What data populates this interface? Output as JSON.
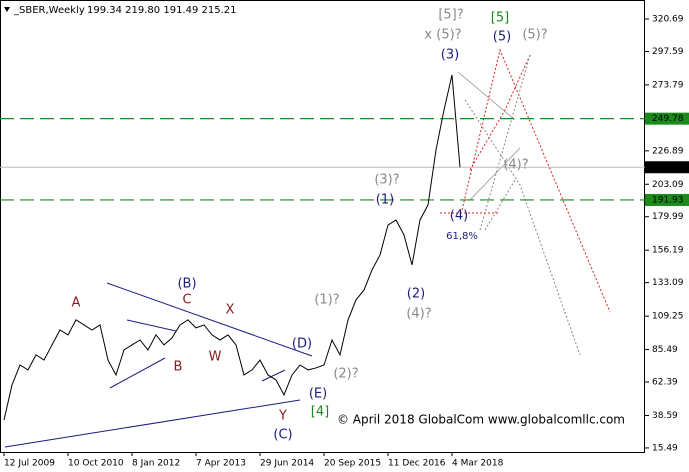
{
  "chart_data": {
    "type": "line",
    "title": "_SBER,Weekly",
    "ohlc": "199.34 219.80 191.49 215.21",
    "color": "#000000",
    "categories": [
      "12 Jul 2009",
      null,
      null,
      null,
      null,
      null,
      null,
      null,
      "10 Oct 2010",
      null,
      null,
      null,
      null,
      null,
      null,
      null,
      "8 Jan 2012",
      null,
      null,
      null,
      null,
      null,
      null,
      null,
      "7 Apr 2013",
      null,
      null,
      null,
      null,
      null,
      null,
      null,
      "29 Jun 2014",
      null,
      null,
      null,
      null,
      null,
      null,
      null,
      "20 Sep 2015",
      null,
      null,
      null,
      null,
      null,
      null,
      null,
      "11 Dec 2016",
      null,
      null,
      null,
      null,
      null,
      null,
      null,
      "4 Mar 2018",
      null
    ],
    "values": [
      35.4,
      60.3,
      74.5,
      71,
      81.7,
      78,
      88.8,
      99.4,
      95.9,
      106.6,
      103,
      99.4,
      103,
      78,
      67.4,
      85.2,
      88.8,
      92.3,
      85.2,
      95.9,
      88.8,
      93.8,
      103,
      106.6,
      100.9,
      103,
      95.9,
      92.3,
      95.9,
      88.8,
      67.4,
      71,
      78,
      67.4,
      63.9,
      53.2,
      67.4,
      74.5,
      71,
      72.4,
      74.5,
      92.3,
      81.7,
      106.6,
      120.8,
      127.9,
      142.1,
      152.8,
      174.1,
      177.7,
      167,
      145.7,
      177.7,
      188.4,
      227.5,
      255.9,
      280.9,
      215.21
    ],
    "ylim": [
      12.6,
      334.2
    ],
    "yticks": [
      15.49,
      38.59,
      62.39,
      85.49,
      109.25,
      133.09,
      156.19,
      179.99,
      203.09,
      226.89,
      273.79,
      297.59,
      320.69
    ],
    "hlines": [
      {
        "value": 249.78,
        "color": "#1a8a1a"
      },
      {
        "value": 215.21,
        "color": "#000000"
      },
      {
        "value": 191.93,
        "color": "#1a8a1a"
      }
    ],
    "annotations": [
      "[5]?",
      "[5]",
      "x (5)?",
      "(5)",
      "(5)?",
      "(3)",
      "(3)?",
      "(1)",
      "(4)",
      "61,8%",
      "(4)?",
      "(2)",
      "(4)?",
      "(1)?",
      "(2)?",
      "A",
      "(B)",
      "C",
      "X",
      "W",
      "B",
      "(D)",
      "(E)",
      "[4]",
      "Y",
      "(C)",
      "© April 2018 GlobalCom www.globalcomllc.com"
    ]
  }
}
